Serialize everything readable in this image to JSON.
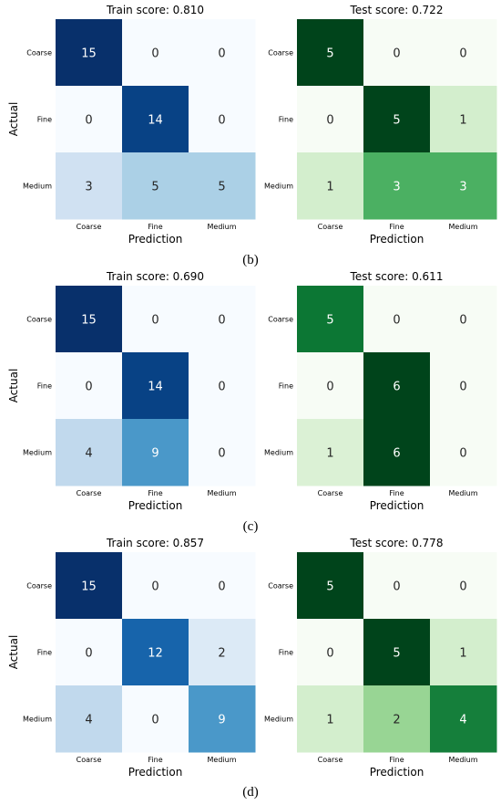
{
  "chart_data": [
    {
      "type": "heatmap",
      "panel": "b",
      "title": "Train score: 0.810",
      "xlabel": "Prediction",
      "ylabel": "Actual",
      "x_categories": [
        "Coarse",
        "Fine",
        "Medium"
      ],
      "y_categories": [
        "Coarse",
        "Fine",
        "Medium"
      ],
      "values": [
        [
          15,
          0,
          0
        ],
        [
          0,
          14,
          0
        ],
        [
          3,
          5,
          5
        ]
      ],
      "colormap": "blues",
      "vmax": 15
    },
    {
      "type": "heatmap",
      "panel": "b",
      "title": "Test score: 0.722",
      "xlabel": "Prediction",
      "ylabel": "",
      "x_categories": [
        "Coarse",
        "Fine",
        "Medium"
      ],
      "y_categories": [
        "Coarse",
        "Fine",
        "Medium"
      ],
      "values": [
        [
          5,
          0,
          0
        ],
        [
          0,
          5,
          1
        ],
        [
          1,
          3,
          3
        ]
      ],
      "colormap": "greens",
      "vmax": 5
    },
    {
      "type": "heatmap",
      "panel": "c",
      "title": "Train score: 0.690",
      "xlabel": "Prediction",
      "ylabel": "Actual",
      "x_categories": [
        "Coarse",
        "Fine",
        "Medium"
      ],
      "y_categories": [
        "Coarse",
        "Fine",
        "Medium"
      ],
      "values": [
        [
          15,
          0,
          0
        ],
        [
          0,
          14,
          0
        ],
        [
          4,
          9,
          0
        ]
      ],
      "colormap": "blues",
      "vmax": 15
    },
    {
      "type": "heatmap",
      "panel": "c",
      "title": "Test score: 0.611",
      "xlabel": "Prediction",
      "ylabel": "",
      "x_categories": [
        "Coarse",
        "Fine",
        "Medium"
      ],
      "y_categories": [
        "Coarse",
        "Fine",
        "Medium"
      ],
      "values": [
        [
          5,
          0,
          0
        ],
        [
          0,
          6,
          0
        ],
        [
          1,
          6,
          0
        ]
      ],
      "colormap": "greens",
      "vmax": 6
    },
    {
      "type": "heatmap",
      "panel": "d",
      "title": "Train score: 0.857",
      "xlabel": "Prediction",
      "ylabel": "Actual",
      "x_categories": [
        "Coarse",
        "Fine",
        "Medium"
      ],
      "y_categories": [
        "Coarse",
        "Fine",
        "Medium"
      ],
      "values": [
        [
          15,
          0,
          0
        ],
        [
          0,
          12,
          2
        ],
        [
          4,
          0,
          9
        ]
      ],
      "colormap": "blues",
      "vmax": 15
    },
    {
      "type": "heatmap",
      "panel": "d",
      "title": "Test score: 0.778",
      "xlabel": "Prediction",
      "ylabel": "",
      "x_categories": [
        "Coarse",
        "Fine",
        "Medium"
      ],
      "y_categories": [
        "Coarse",
        "Fine",
        "Medium"
      ],
      "values": [
        [
          5,
          0,
          0
        ],
        [
          0,
          5,
          1
        ],
        [
          1,
          2,
          4
        ]
      ],
      "colormap": "greens",
      "vmax": 5
    }
  ],
  "panel_labels": [
    "(b)",
    "(c)",
    "(d)"
  ],
  "colors": {
    "blues_low": "#f7fbff",
    "blues_high": "#08306b",
    "greens_low": "#f7fcf5",
    "greens_high": "#00441b",
    "text_dark": "#262626",
    "text_light": "#ffffff"
  }
}
